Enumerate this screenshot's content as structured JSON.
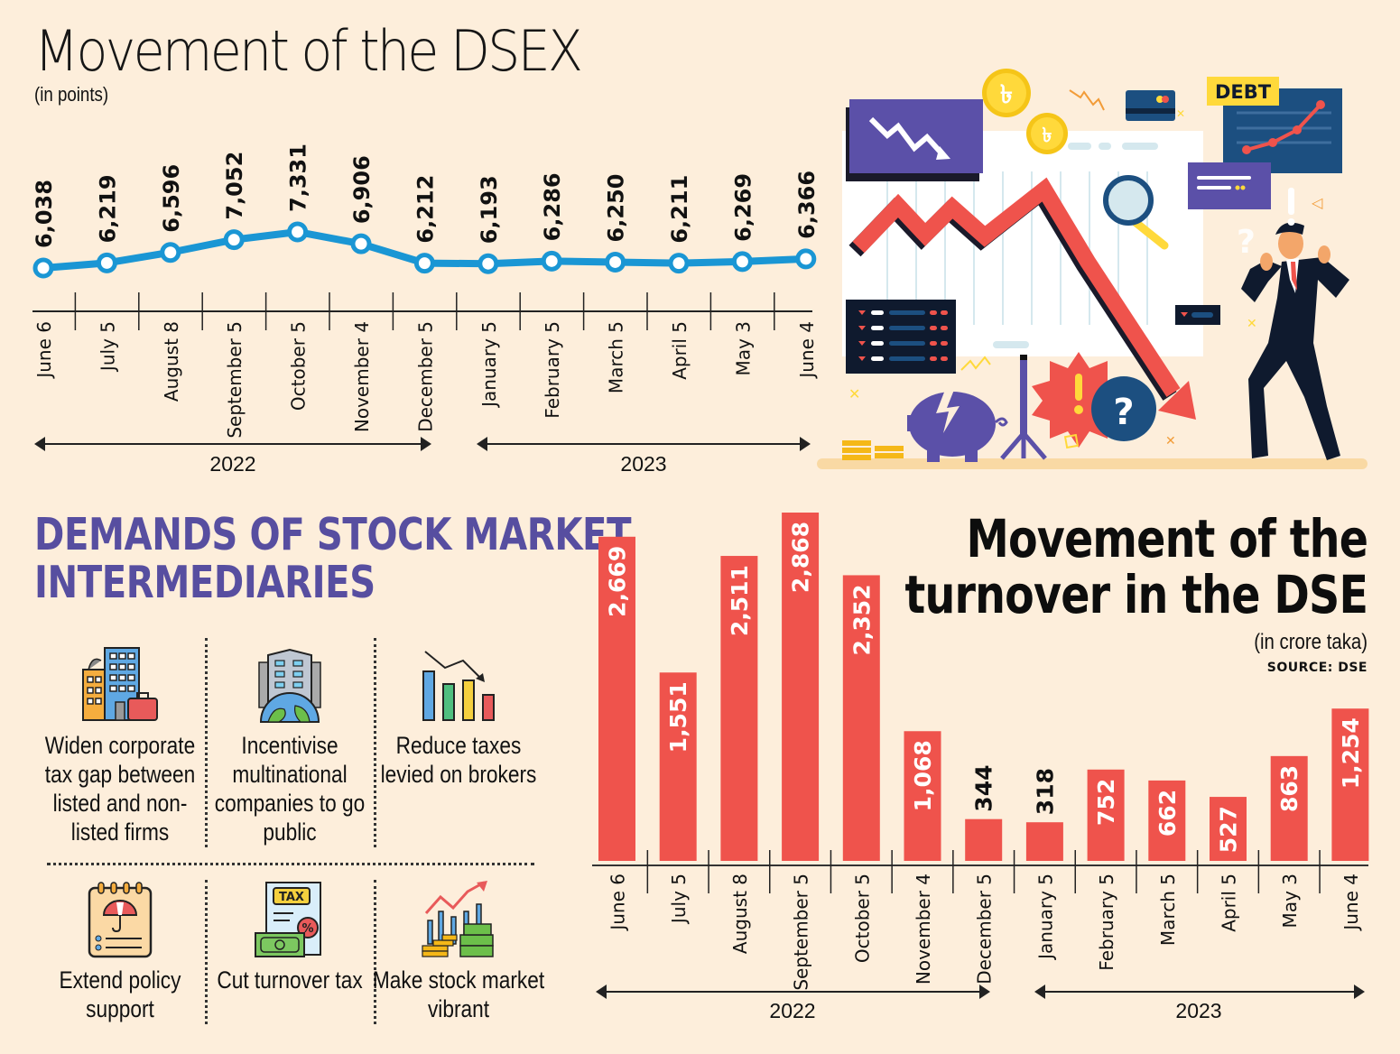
{
  "dsex": {
    "title": "Movement of the DSEX",
    "subtitle": "(in points)"
  },
  "demands": {
    "title_line1": "DEMANDS OF STOCK MARKET",
    "title_line2": "INTERMEDIARIES",
    "items": [
      {
        "icon": "corporate-buildings-icon",
        "label": "Widen corporate tax gap between listed and non-listed firms"
      },
      {
        "icon": "multinational-globe-icon",
        "label": "Incentivise multinational companies to go public"
      },
      {
        "icon": "declining-bar-chart-icon",
        "label": "Reduce taxes levied on brokers"
      },
      {
        "icon": "policy-umbrella-notepad-icon",
        "label": "Extend policy support"
      },
      {
        "icon": "tax-document-icon",
        "label": "Cut turnover tax"
      },
      {
        "icon": "rising-market-money-icon",
        "label": "Make stock market vibrant"
      }
    ]
  },
  "turnover": {
    "title_line1": "Movement of the",
    "title_line2": "turnover in the DSE",
    "subtitle": "(in crore taka)",
    "source": "SOURCE: DSE"
  },
  "illustration": {
    "debt_label": "DEBT",
    "coin_symbol": "৳"
  },
  "colors": {
    "background": "#fdeedb",
    "line": "#1a96d4",
    "bar": "#ef534c",
    "demands_title": "#574ea0"
  },
  "chart_data": [
    {
      "type": "line",
      "title": "Movement of the DSEX",
      "subtitle": "(in points)",
      "xlabel": "",
      "ylabel": "",
      "categories": [
        "June 6",
        "July 5",
        "August 8",
        "September 5",
        "October 5",
        "November 4",
        "December 5",
        "January 5",
        "February 5",
        "March 5",
        "April 5",
        "May 3",
        "June 4"
      ],
      "values": [
        6038,
        6219,
        6596,
        7052,
        7331,
        6906,
        6212,
        6193,
        6286,
        6250,
        6211,
        6269,
        6366
      ],
      "value_labels": [
        "6,038",
        "6,219",
        "6,596",
        "7,052",
        "7,331",
        "6,906",
        "6,212",
        "6,193",
        "6,286",
        "6,250",
        "6,211",
        "6,269",
        "6,366"
      ],
      "year_groups": [
        {
          "label": "2022",
          "from": "June 6",
          "to": "December 5"
        },
        {
          "label": "2023",
          "from": "January 5",
          "to": "June 4"
        }
      ],
      "grid": false,
      "legend": "none"
    },
    {
      "type": "bar",
      "title": "Movement of the turnover in the DSE",
      "subtitle": "(in crore taka)",
      "source": "SOURCE: DSE",
      "xlabel": "",
      "ylabel": "",
      "categories": [
        "June 6",
        "July 5",
        "August 8",
        "September 5",
        "October 5",
        "November 4",
        "December 5",
        "January 5",
        "February 5",
        "March 5",
        "April 5",
        "May 3",
        "June 4"
      ],
      "values": [
        2669,
        1551,
        2511,
        2868,
        2352,
        1068,
        344,
        318,
        752,
        662,
        527,
        863,
        1254
      ],
      "value_labels": [
        "2,669",
        "1,551",
        "2,511",
        "2,868",
        "2,352",
        "1,068",
        "344",
        "318",
        "752",
        "662",
        "527",
        "863",
        "1,254"
      ],
      "year_groups": [
        {
          "label": "2022",
          "from": "June 6",
          "to": "December 5"
        },
        {
          "label": "2023",
          "from": "January 5",
          "to": "June 4"
        }
      ],
      "ylim": [
        0,
        2868
      ],
      "grid": false,
      "legend": "none"
    }
  ]
}
